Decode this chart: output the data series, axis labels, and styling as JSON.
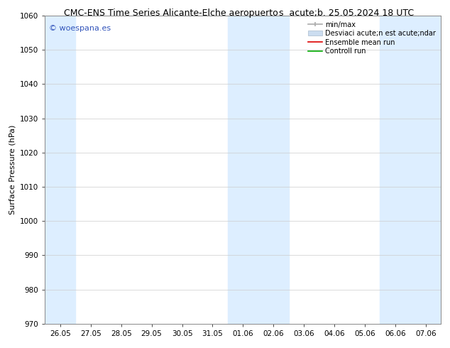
{
  "title_left": "CMC-ENS Time Series Alicante-Elche aeropuerto",
  "title_right": "s  acute;b. 25.05.2024 18 UTC",
  "ylabel": "Surface Pressure (hPa)",
  "ylim": [
    970,
    1060
  ],
  "yticks": [
    970,
    980,
    990,
    1000,
    1010,
    1020,
    1030,
    1040,
    1050,
    1060
  ],
  "xlabel_ticks": [
    "26.05",
    "27.05",
    "28.05",
    "29.05",
    "30.05",
    "31.05",
    "01.06",
    "02.06",
    "03.06",
    "04.06",
    "05.06",
    "06.06",
    "07.06"
  ],
  "background_color": "#ffffff",
  "plot_bg_color": "#ffffff",
  "shaded_band_color": "#ddeeff",
  "shaded_indices": [
    0,
    6,
    7,
    11,
    12
  ],
  "watermark_text": "© woespana.es",
  "watermark_color": "#3355bb",
  "legend_labels": [
    "min/max",
    "Desviaci acute;n est acute;ndar",
    "Ensemble mean run",
    "Controll run"
  ],
  "legend_line_colors": [
    "#aaaaaa",
    "#ccddf0",
    "#dd0000",
    "#00aa00"
  ],
  "grid_color": "#cccccc",
  "title_fontsize": 9,
  "tick_fontsize": 7.5,
  "ylabel_fontsize": 8,
  "legend_fontsize": 7
}
